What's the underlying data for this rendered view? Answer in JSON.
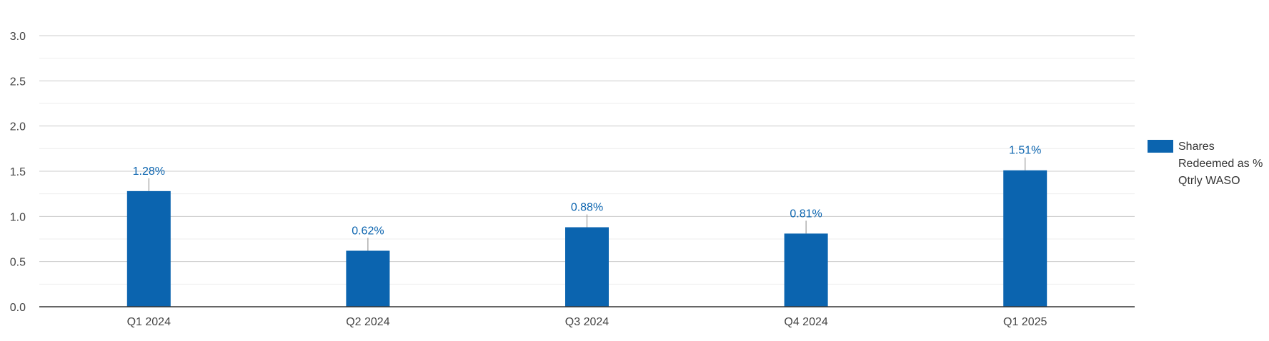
{
  "chart_data": {
    "type": "bar",
    "categories": [
      "Q1 2024",
      "Q2 2024",
      "Q3 2024",
      "Q4 2024",
      "Q1 2025"
    ],
    "series": [
      {
        "name": "Shares Redeemed as % Qtrly WASO",
        "values": [
          1.28,
          0.62,
          0.88,
          0.81,
          1.51
        ],
        "data_labels": [
          "1.28%",
          "0.62%",
          "0.88%",
          "0.81%",
          "1.51%"
        ],
        "color": "#0b64af"
      }
    ],
    "y_ticks": [
      "0.0",
      "0.5",
      "1.0",
      "1.5",
      "2.0",
      "2.5",
      "3.0"
    ],
    "ylim": [
      0,
      3.0
    ],
    "grid": true,
    "legend_position": "right",
    "colors": {
      "bar": "#0b64af",
      "label": "#0b64af",
      "grid_major": "#cccccc",
      "grid_minor": "#eeeeee",
      "axis": "#333333",
      "leader": "#888888"
    }
  }
}
